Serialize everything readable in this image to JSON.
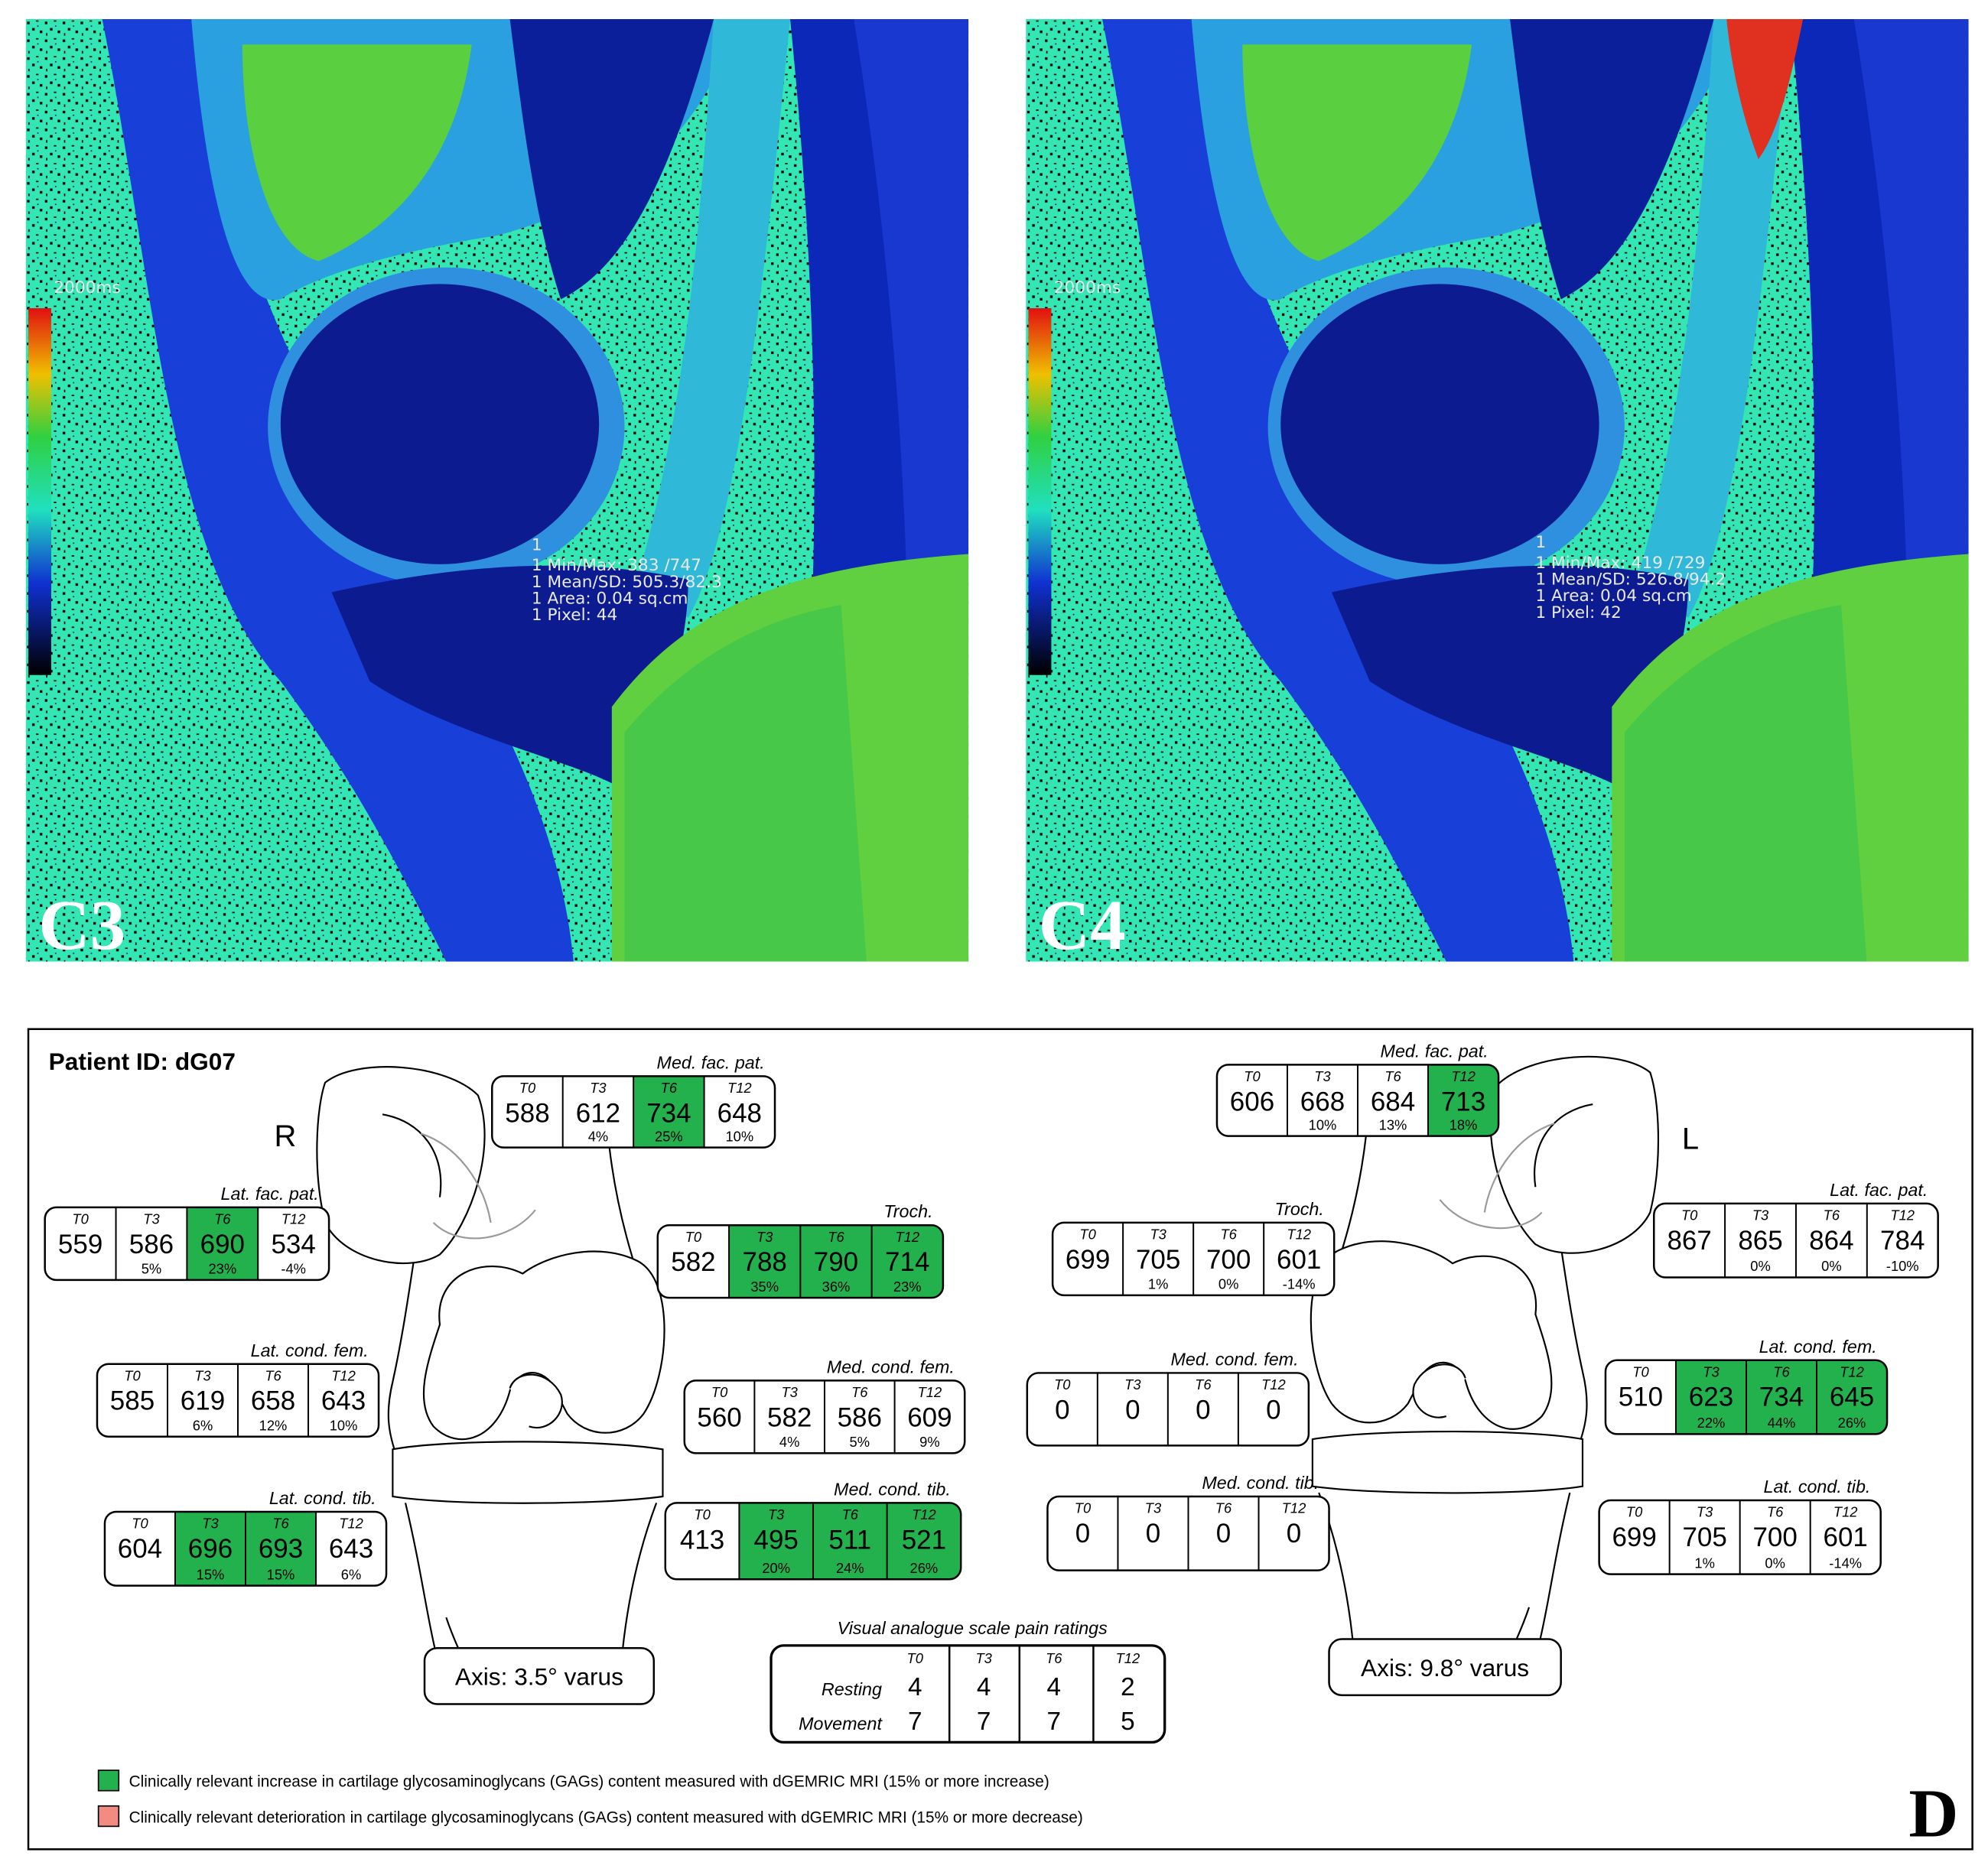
{
  "images": [
    {
      "label": "C3",
      "scale_top": "2000ms",
      "roi": "1",
      "overlay": [
        "1 Min/Max: 383 /747",
        "1 Mean/SD: 505.3/82.3",
        "1 Area: 0.04 sq.cm",
        "1 Pixel: 44"
      ]
    },
    {
      "label": "C4",
      "scale_top": "2000ms",
      "roi": "1",
      "overlay": [
        "1 Min/Max: 419 /729",
        "1 Mean/SD: 526.8/94.2",
        "1 Area: 0.04 sq.cm",
        "1 Pixel: 42"
      ]
    }
  ],
  "diagram": {
    "patient_id": "Patient ID: dG07",
    "right_side": "R",
    "left_side": "L",
    "right_axis": "Axis: 3.5° varus",
    "left_axis": "Axis: 9.8° varus",
    "panel_label": "D",
    "highlight_color": "#22b14c",
    "boxes": [
      {
        "title": "Med. fac. pat.",
        "cells": [
          {
            "t": "T0",
            "value": 588
          },
          {
            "t": "T3",
            "value": 612,
            "pct": "4%"
          },
          {
            "t": "T6",
            "value": 734,
            "pct": "25%",
            "relevant": true
          },
          {
            "t": "T12",
            "value": 648,
            "pct": "10%"
          }
        ]
      },
      {
        "title": "Lat. fac. pat.",
        "cells": [
          {
            "t": "T0",
            "value": 559
          },
          {
            "t": "T3",
            "value": 586,
            "pct": "5%"
          },
          {
            "t": "T6",
            "value": 690,
            "pct": "23%",
            "relevant": true
          },
          {
            "t": "T12",
            "value": 534,
            "pct": "-4%"
          }
        ]
      },
      {
        "title": "Troch.",
        "cells": [
          {
            "t": "T0",
            "value": 582
          },
          {
            "t": "T3",
            "value": 788,
            "pct": "35%",
            "relevant": true
          },
          {
            "t": "T6",
            "value": 790,
            "pct": "36%",
            "relevant": true
          },
          {
            "t": "T12",
            "value": 714,
            "pct": "23%",
            "relevant": true
          }
        ]
      },
      {
        "title": "Lat. cond. fem.",
        "cells": [
          {
            "t": "T0",
            "value": 585
          },
          {
            "t": "T3",
            "value": 619,
            "pct": "6%"
          },
          {
            "t": "T6",
            "value": 658,
            "pct": "12%"
          },
          {
            "t": "T12",
            "value": 643,
            "pct": "10%"
          }
        ]
      },
      {
        "title": "Med. cond. fem.",
        "cells": [
          {
            "t": "T0",
            "value": 560
          },
          {
            "t": "T3",
            "value": 582,
            "pct": "4%"
          },
          {
            "t": "T6",
            "value": 586,
            "pct": "5%"
          },
          {
            "t": "T12",
            "value": 609,
            "pct": "9%"
          }
        ]
      },
      {
        "title": "Lat. cond. tib.",
        "cells": [
          {
            "t": "T0",
            "value": 604
          },
          {
            "t": "T3",
            "value": 696,
            "pct": "15%",
            "relevant": true
          },
          {
            "t": "T6",
            "value": 693,
            "pct": "15%",
            "relevant": true
          },
          {
            "t": "T12",
            "value": 643,
            "pct": "6%"
          }
        ]
      },
      {
        "title": "Med. cond. tib.",
        "cells": [
          {
            "t": "T0",
            "value": 413
          },
          {
            "t": "T3",
            "value": 495,
            "pct": "20%",
            "relevant": true
          },
          {
            "t": "T6",
            "value": 511,
            "pct": "24%",
            "relevant": true
          },
          {
            "t": "T12",
            "value": 521,
            "pct": "26%",
            "relevant": true
          }
        ]
      },
      {
        "title": "Med. fac. pat.",
        "cells": [
          {
            "t": "T0",
            "value": 606
          },
          {
            "t": "T3",
            "value": 668,
            "pct": "10%"
          },
          {
            "t": "T6",
            "value": 684,
            "pct": "13%"
          },
          {
            "t": "T12",
            "value": 713,
            "pct": "18%",
            "relevant": true
          }
        ]
      },
      {
        "title": "Troch.",
        "cells": [
          {
            "t": "T0",
            "value": 699
          },
          {
            "t": "T3",
            "value": 705,
            "pct": "1%"
          },
          {
            "t": "T6",
            "value": 700,
            "pct": "0%"
          },
          {
            "t": "T12",
            "value": 601,
            "pct": "-14%"
          }
        ]
      },
      {
        "title": "Lat. fac. pat.",
        "cells": [
          {
            "t": "T0",
            "value": 867
          },
          {
            "t": "T3",
            "value": 865,
            "pct": "0%"
          },
          {
            "t": "T6",
            "value": 864,
            "pct": "0%"
          },
          {
            "t": "T12",
            "value": 784,
            "pct": "-10%"
          }
        ]
      },
      {
        "title": "Med. cond. fem.",
        "cells": [
          {
            "t": "T0",
            "value": 0
          },
          {
            "t": "T3",
            "value": 0
          },
          {
            "t": "T6",
            "value": 0
          },
          {
            "t": "T12",
            "value": 0
          }
        ]
      },
      {
        "title": "Lat. cond. fem.",
        "cells": [
          {
            "t": "T0",
            "value": 510
          },
          {
            "t": "T3",
            "value": 623,
            "pct": "22%",
            "relevant": true
          },
          {
            "t": "T6",
            "value": 734,
            "pct": "44%",
            "relevant": true
          },
          {
            "t": "T12",
            "value": 645,
            "pct": "26%",
            "relevant": true
          }
        ]
      },
      {
        "title": "Med. cond. tib.",
        "cells": [
          {
            "t": "T0",
            "value": 0
          },
          {
            "t": "T3",
            "value": 0
          },
          {
            "t": "T6",
            "value": 0
          },
          {
            "t": "T12",
            "value": 0
          }
        ]
      },
      {
        "title": "Lat. cond. tib.",
        "cells": [
          {
            "t": "T0",
            "value": 699
          },
          {
            "t": "T3",
            "value": 705,
            "pct": "1%"
          },
          {
            "t": "T6",
            "value": 700,
            "pct": "0%"
          },
          {
            "t": "T12",
            "value": 601,
            "pct": "-14%"
          }
        ]
      }
    ],
    "vas": {
      "title": "Visual analogue scale pain ratings",
      "columns": [
        "T0",
        "T3",
        "T6",
        "T12"
      ],
      "rows": [
        {
          "label": "Resting",
          "values": [
            4,
            4,
            4,
            2
          ]
        },
        {
          "label": "Movement",
          "values": [
            7,
            7,
            7,
            5
          ]
        }
      ]
    },
    "legend": [
      {
        "color": "#22b14c",
        "text": "Clinically relevant  increase in cartilage glycosaminoglycans (GAGs) content measured with dGEMRIC MRI (15% or more increase)"
      },
      {
        "color": "#f28b82",
        "text": "Clinically relevant deterioration in cartilage glycosaminoglycans (GAGs) content measured with dGEMRIC MRI  (15% or more decrease)"
      }
    ]
  }
}
